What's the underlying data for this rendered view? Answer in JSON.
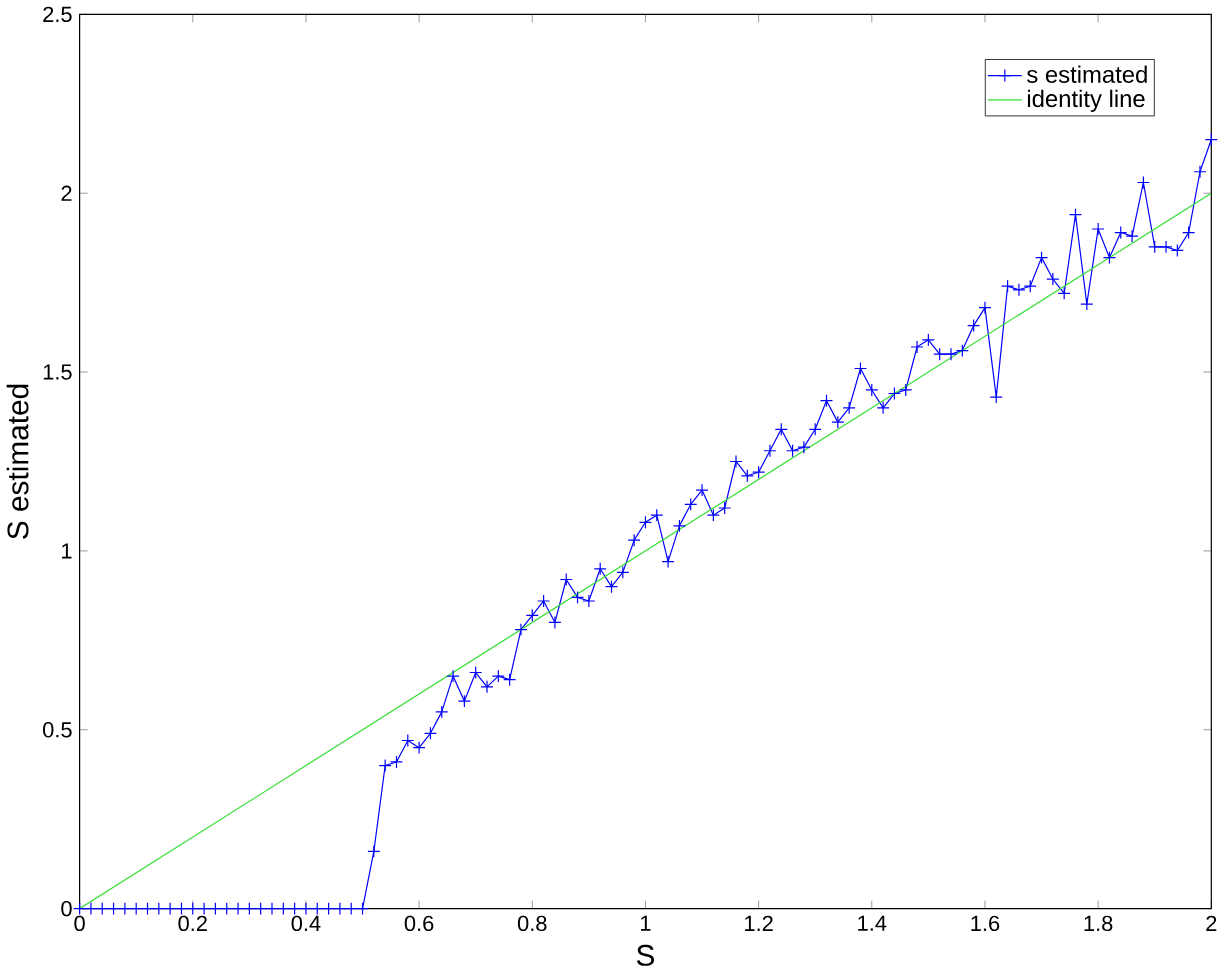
{
  "chart_data": {
    "type": "line",
    "xlabel": "S",
    "ylabel": "S estimated",
    "xlim": [
      0,
      2
    ],
    "ylim": [
      0,
      2.5
    ],
    "xticks": [
      0,
      0.2,
      0.4,
      0.6,
      0.8,
      1,
      1.2,
      1.4,
      1.6,
      1.8,
      2
    ],
    "yticks": [
      0,
      0.5,
      1,
      1.5,
      2,
      2.5
    ],
    "grid": false,
    "legend": "top right",
    "series": [
      {
        "name": "s estimated",
        "color": "#0000ff",
        "marker": "cross",
        "line_style": "solid",
        "x": [
          0,
          0.02,
          0.04,
          0.06,
          0.08,
          0.1,
          0.12,
          0.14,
          0.16,
          0.18,
          0.2,
          0.22,
          0.24,
          0.26,
          0.28,
          0.3,
          0.32,
          0.34,
          0.36,
          0.38,
          0.4,
          0.42,
          0.44,
          0.46,
          0.48,
          0.5,
          0.52,
          0.54,
          0.56,
          0.58,
          0.6,
          0.62,
          0.64,
          0.66,
          0.68,
          0.7,
          0.72,
          0.74,
          0.76,
          0.78,
          0.8,
          0.82,
          0.84,
          0.86,
          0.88,
          0.9,
          0.92,
          0.94,
          0.96,
          0.98,
          1,
          1.02,
          1.04,
          1.06,
          1.08,
          1.1,
          1.12,
          1.14,
          1.16,
          1.18,
          1.2,
          1.22,
          1.24,
          1.26,
          1.28,
          1.3,
          1.32,
          1.34,
          1.36,
          1.38,
          1.4,
          1.42,
          1.44,
          1.46,
          1.48,
          1.5,
          1.52,
          1.54,
          1.56,
          1.58,
          1.6,
          1.62,
          1.64,
          1.66,
          1.68,
          1.7,
          1.72,
          1.74,
          1.76,
          1.78,
          1.8,
          1.82,
          1.84,
          1.86,
          1.88,
          1.9,
          1.92,
          1.94,
          1.96,
          1.98,
          2
        ],
        "values": [
          0,
          0,
          0,
          0,
          0,
          0,
          0,
          0,
          0,
          0,
          0,
          0,
          0,
          0,
          0,
          0,
          0,
          0,
          0,
          0,
          0,
          0,
          0,
          0,
          0,
          0,
          0.16,
          0.4,
          0.41,
          0.47,
          0.45,
          0.49,
          0.55,
          0.65,
          0.58,
          0.66,
          0.62,
          0.65,
          0.64,
          0.78,
          0.82,
          0.86,
          0.8,
          0.92,
          0.87,
          0.86,
          0.95,
          0.9,
          0.94,
          1.03,
          1.08,
          1.1,
          0.97,
          1.07,
          1.13,
          1.17,
          1.1,
          1.12,
          1.25,
          1.21,
          1.22,
          1.28,
          1.34,
          1.28,
          1.29,
          1.34,
          1.42,
          1.36,
          1.4,
          1.51,
          1.45,
          1.4,
          1.44,
          1.45,
          1.57,
          1.59,
          1.55,
          1.55,
          1.56,
          1.63,
          1.68,
          1.43,
          1.74,
          1.73,
          1.74,
          1.82,
          1.76,
          1.72,
          1.94,
          1.69,
          1.9,
          1.82,
          1.89,
          1.88,
          2.03,
          1.85,
          1.85,
          1.84,
          1.89,
          2.06,
          2.15
        ]
      },
      {
        "name": "identity line",
        "color": "#33dd33",
        "marker": "none",
        "line_style": "solid",
        "x": [
          0,
          2
        ],
        "values": [
          0,
          2
        ]
      }
    ]
  }
}
